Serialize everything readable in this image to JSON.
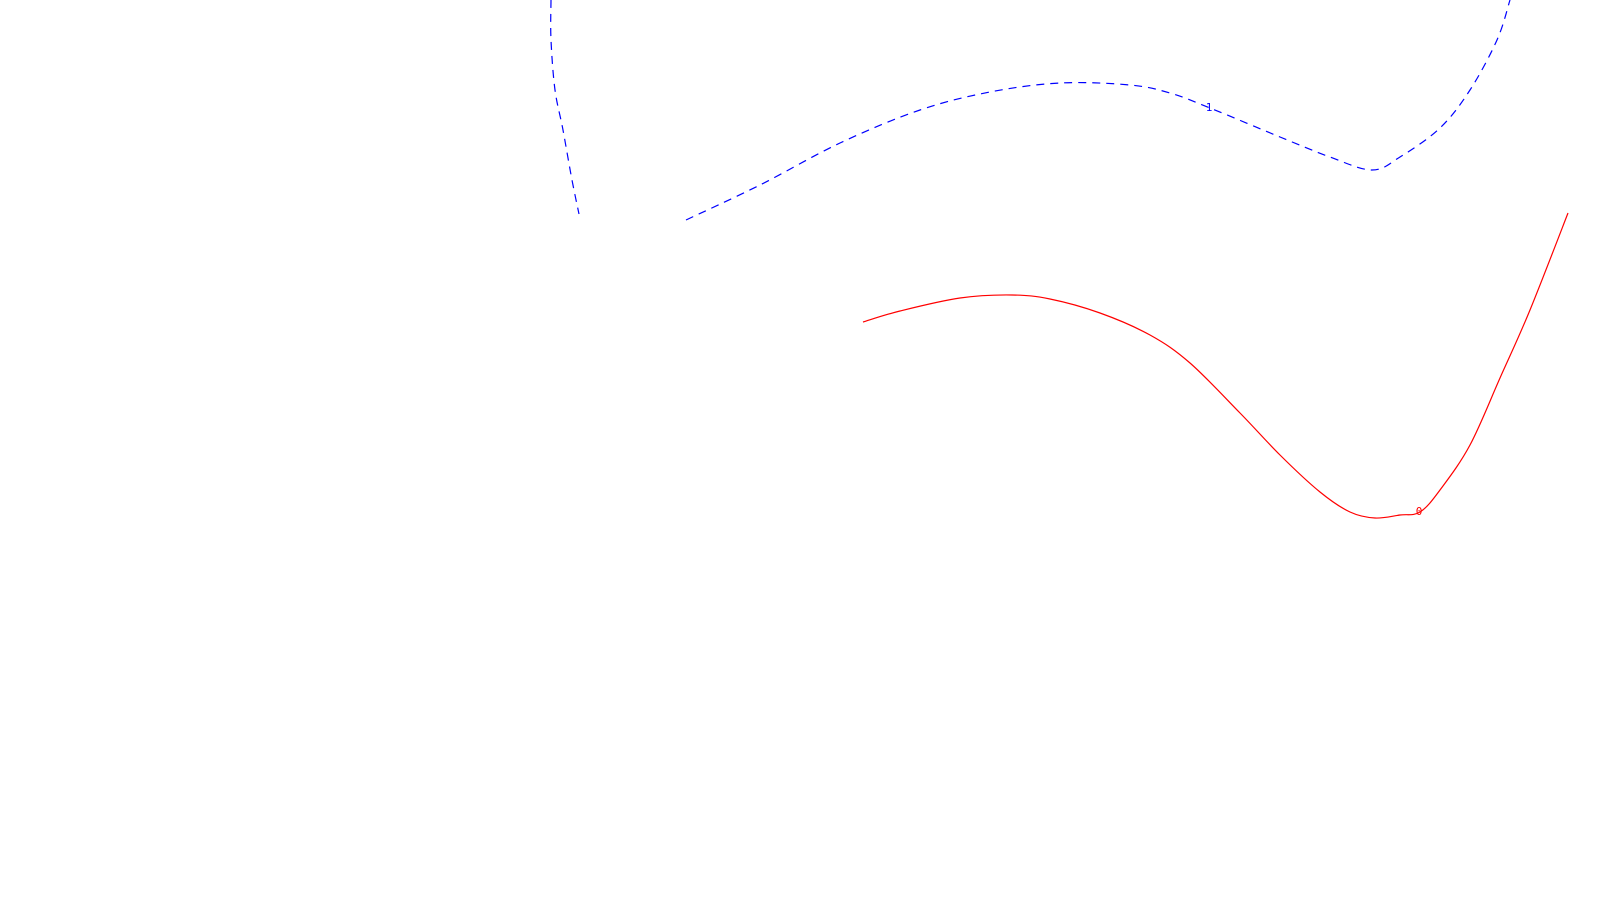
{
  "chart_data": {
    "type": "line",
    "grid": false,
    "axes_visible": false,
    "series": [
      {
        "label": "1",
        "color": "#0000ff",
        "line_style": "dashed",
        "segments": [
          [
            [
              551,
              0
            ],
            [
              551,
              40
            ],
            [
              555,
              90
            ],
            [
              563,
              130
            ],
            [
              572,
              180
            ],
            [
              579,
              214
            ]
          ],
          [
            [
              686,
              220
            ],
            [
              760,
              185
            ],
            [
              840,
              143
            ],
            [
              920,
              110
            ],
            [
              990,
              92
            ],
            [
              1060,
              83
            ],
            [
              1130,
              85
            ],
            [
              1170,
              93
            ],
            [
              1210,
              108
            ],
            [
              1280,
              137
            ],
            [
              1330,
              157
            ],
            [
              1372,
              170
            ],
            [
              1400,
              157
            ],
            [
              1440,
              128
            ],
            [
              1470,
              90
            ],
            [
              1497,
              40
            ],
            [
              1510,
              0
            ]
          ]
        ]
      },
      {
        "label": "0",
        "color": "#ff0000",
        "line_style": "solid",
        "segments": [
          [
            [
              863,
              322
            ],
            [
              900,
              311
            ],
            [
              960,
              298
            ],
            [
              1012,
              295
            ],
            [
              1050,
              299
            ],
            [
              1100,
              313
            ],
            [
              1150,
              335
            ],
            [
              1190,
              363
            ],
            [
              1240,
              413
            ],
            [
              1280,
              455
            ],
            [
              1320,
              492
            ],
            [
              1350,
              512
            ],
            [
              1375,
              518
            ],
            [
              1400,
              515
            ],
            [
              1420,
              512
            ],
            [
              1440,
              490
            ],
            [
              1470,
              445
            ],
            [
              1500,
              378
            ],
            [
              1530,
              310
            ],
            [
              1568,
              213
            ]
          ]
        ]
      }
    ]
  }
}
